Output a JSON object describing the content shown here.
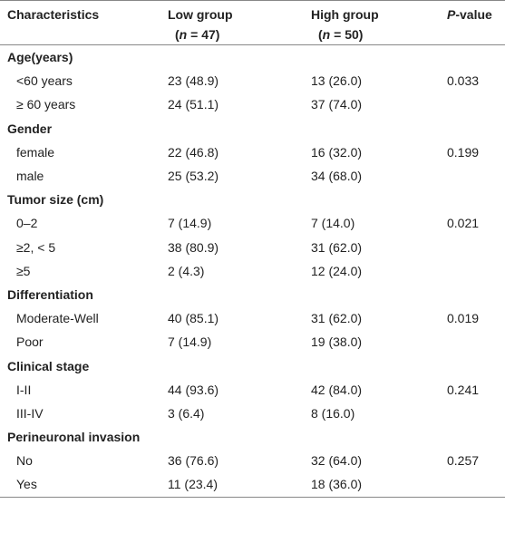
{
  "header": {
    "characteristics": "Characteristics",
    "low": {
      "label": "Low group",
      "n": [
        "(",
        "n",
        " = 47)"
      ]
    },
    "high": {
      "label": "High group",
      "n": [
        "(",
        "n",
        " = 50)"
      ]
    },
    "p": [
      "P",
      "-value"
    ]
  },
  "sections": [
    {
      "title": "Age(years)",
      "rows": [
        {
          "label": "<60 years",
          "low": "23 (48.9)",
          "high": "13 (26.0)",
          "p": "0.033"
        },
        {
          "label": "≥ 60 years",
          "low": "24 (51.1)",
          "high": "37 (74.0)"
        }
      ]
    },
    {
      "title": "Gender",
      "rows": [
        {
          "label": "female",
          "low": "22 (46.8)",
          "high": "16 (32.0)",
          "p": "0.199"
        },
        {
          "label": "male",
          "low": "25 (53.2)",
          "high": "34 (68.0)"
        }
      ]
    },
    {
      "title": "Tumor size (cm)",
      "rows": [
        {
          "label": "0–2",
          "low": "7 (14.9)",
          "high": "7 (14.0)",
          "p": "0.021"
        },
        {
          "label": "≥2, < 5",
          "low": "38 (80.9)",
          "high": "31 (62.0)"
        },
        {
          "label": "≥5",
          "low": "2 (4.3)",
          "high": "12 (24.0)"
        }
      ]
    },
    {
      "title": "Differentiation",
      "rows": [
        {
          "label": "Moderate-Well",
          "low": "40 (85.1)",
          "high": "31 (62.0)",
          "p": "0.019"
        },
        {
          "label": "Poor",
          "low": "7 (14.9)",
          "high": "19 (38.0)"
        }
      ]
    },
    {
      "title": "Clinical stage",
      "rows": [
        {
          "label": "I-II",
          "low": "44 (93.6)",
          "high": "42 (84.0)",
          "p": "0.241"
        },
        {
          "label": "III-IV",
          "low": "3 (6.4)",
          "high": "8 (16.0)"
        }
      ]
    },
    {
      "title": "Perineuronal invasion",
      "rows": [
        {
          "label": "No",
          "low": "36 (76.6)",
          "high": "32 (64.0)",
          "p": "0.257"
        },
        {
          "label": "Yes",
          "low": "11 (23.4)",
          "high": "18 (36.0)"
        }
      ]
    }
  ]
}
